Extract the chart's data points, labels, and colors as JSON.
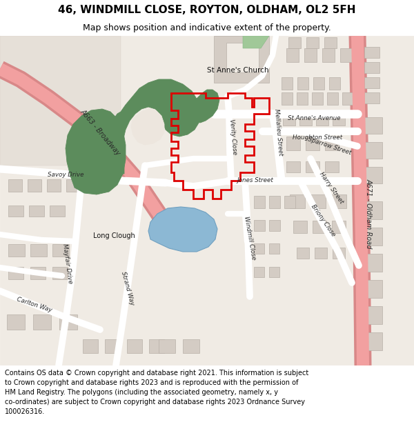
{
  "title": "46, WINDMILL CLOSE, ROYTON, OLDHAM, OL2 5FH",
  "subtitle": "Map shows position and indicative extent of the property.",
  "footer": "Contains OS data © Crown copyright and database right 2021. This information is subject\nto Crown copyright and database rights 2023 and is reproduced with the permission of\nHM Land Registry. The polygons (including the associated geometry, namely x, y\nco-ordinates) are subject to Crown copyright and database rights 2023 Ordnance Survey\n100026316.",
  "title_fontsize": 11,
  "subtitle_fontsize": 9,
  "footer_fontsize": 7,
  "map_bg": "#f0ebe4",
  "beige_block": "#e6e0d8",
  "road_white": "#ffffff",
  "road_major_fill": "#f2a0a0",
  "road_major_edge": "#d88888",
  "building_fill": "#d4ccc4",
  "building_edge": "#b8b0a8",
  "green_fill": "#5c8c5c",
  "water_fill": "#8cb8d4",
  "red_line": "#dd0000",
  "label_col": "#2a2a2a",
  "church_green": "#a0c898"
}
